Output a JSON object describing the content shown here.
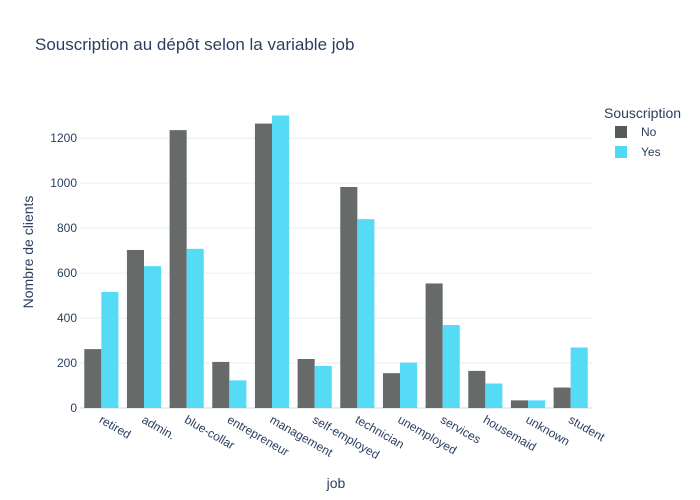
{
  "chart_data": {
    "type": "bar",
    "title": "Souscription au dépôt selon la variable job",
    "xlabel": "job",
    "ylabel": "Nombre de clients",
    "categories": [
      "retired",
      "admin.",
      "blue-collar",
      "entrepreneur",
      "management",
      "self-employed",
      "technician",
      "unemployed",
      "services",
      "housemaid",
      "unknown",
      "student"
    ],
    "series": [
      {
        "name": "No",
        "color": "#555b5a",
        "values": [
          262,
          703,
          1236,
          205,
          1265,
          218,
          983,
          155,
          554,
          165,
          34,
          91
        ]
      },
      {
        "name": "Yes",
        "color": "#4dd9f5",
        "values": [
          516,
          631,
          708,
          123,
          1301,
          187,
          840,
          202,
          369,
          109,
          34,
          269
        ]
      }
    ],
    "ylim": [
      0,
      1370
    ],
    "yticks": [
      0,
      200,
      400,
      600,
      800,
      1000,
      1200
    ],
    "grid": true,
    "legend": {
      "title": "Souscription",
      "placement": "top-right"
    }
  }
}
